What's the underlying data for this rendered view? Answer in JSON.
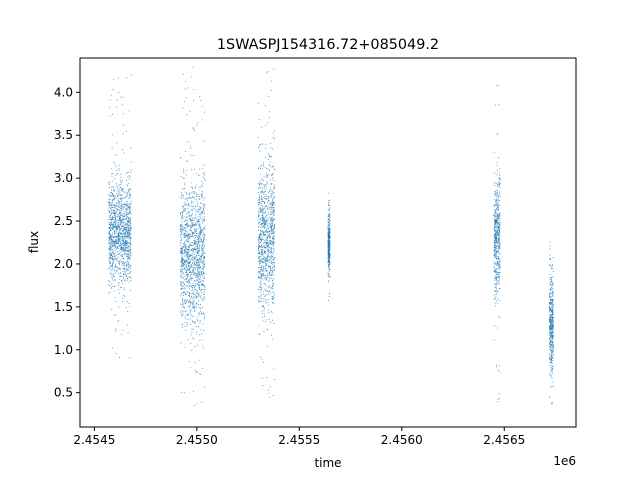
{
  "chart_data": {
    "type": "scatter",
    "title": "1SWASPJ154316.72+085049.2",
    "xlabel": "time",
    "ylabel": "flux",
    "x_offset_label": "1e6",
    "xlim": [
      2454430,
      2456850
    ],
    "ylim": [
      0.1,
      4.4
    ],
    "x_ticks": [
      2454500,
      2455000,
      2455500,
      2456000,
      2456500
    ],
    "x_tick_labels": [
      "2.4545",
      "2.4550",
      "2.4555",
      "2.4560",
      "2.4565"
    ],
    "y_ticks": [
      0.5,
      1.0,
      1.5,
      2.0,
      2.5,
      3.0,
      3.5,
      4.0
    ],
    "y_tick_labels": [
      "0.5",
      "1.0",
      "1.5",
      "2.0",
      "2.5",
      "3.0",
      "3.5",
      "4.0"
    ],
    "grid": false,
    "marker_color": "#1f77b4",
    "series": [
      {
        "x_range": [
          2454570,
          2454680
        ],
        "flux_typical_range": [
          1.75,
          2.95
        ],
        "flux_extremes": [
          0.9,
          4.25
        ]
      },
      {
        "x_range": [
          2454920,
          2455040
        ],
        "flux_typical_range": [
          1.3,
          2.9
        ],
        "flux_extremes": [
          0.3,
          4.3
        ]
      },
      {
        "x_range": [
          2455300,
          2455380
        ],
        "flux_typical_range": [
          1.5,
          3.15
        ],
        "flux_extremes": [
          0.38,
          4.28
        ]
      },
      {
        "x_range": [
          2455640,
          2455650
        ],
        "flux_typical_range": [
          1.9,
          2.6
        ],
        "flux_extremes": [
          1.55,
          2.9
        ]
      },
      {
        "x_range": [
          2456450,
          2456480
        ],
        "flux_typical_range": [
          1.6,
          3.0
        ],
        "flux_extremes": [
          0.35,
          4.2
        ]
      },
      {
        "x_range": [
          2456720,
          2456740
        ],
        "flux_typical_range": [
          0.75,
          1.85
        ],
        "flux_extremes": [
          0.35,
          2.3
        ]
      }
    ]
  }
}
